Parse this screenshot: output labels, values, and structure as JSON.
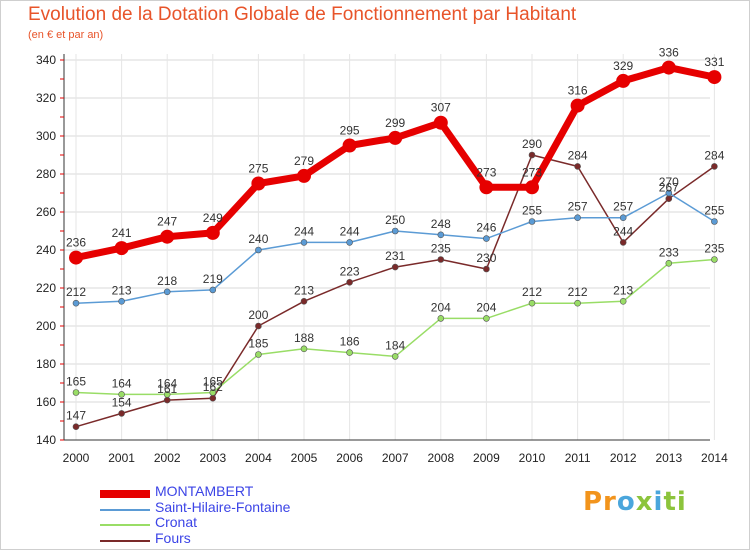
{
  "title": "Evolution de la Dotation Globale de Fonctionnement par Habitant",
  "subtitle": "(en € et par an)",
  "logo_text": "Proxiti",
  "chart_data": {
    "type": "line",
    "title": "Evolution de la Dotation Globale de Fonctionnement par Habitant",
    "subtitle": "(en € et par an)",
    "x": [
      2000,
      2001,
      2002,
      2003,
      2004,
      2005,
      2006,
      2007,
      2008,
      2009,
      2010,
      2011,
      2012,
      2013,
      2014
    ],
    "ylim": [
      140,
      340
    ],
    "yticks": [
      140,
      160,
      180,
      200,
      220,
      240,
      260,
      280,
      300,
      320,
      340
    ],
    "grid": true,
    "legend_position": "bottom-left",
    "series": [
      {
        "name": "MONTAMBERT",
        "color": "#e60000",
        "values": [
          236,
          241,
          247,
          249,
          275,
          279,
          295,
          299,
          307,
          273,
          273,
          316,
          329,
          336,
          331
        ]
      },
      {
        "name": "Saint-Hilaire-Fontaine",
        "color": "#5b9bd5",
        "values": [
          212,
          213,
          218,
          219,
          240,
          244,
          244,
          250,
          248,
          246,
          255,
          257,
          257,
          270,
          255
        ]
      },
      {
        "name": "Cronat",
        "color": "#99dd66",
        "values": [
          165,
          164,
          164,
          165,
          185,
          188,
          186,
          184,
          204,
          204,
          212,
          212,
          213,
          233,
          235
        ]
      },
      {
        "name": "Fours",
        "color": "#7a2a2a",
        "values": [
          147,
          154,
          161,
          162,
          200,
          213,
          223,
          231,
          235,
          230,
          290,
          284,
          244,
          267,
          284
        ]
      }
    ]
  }
}
